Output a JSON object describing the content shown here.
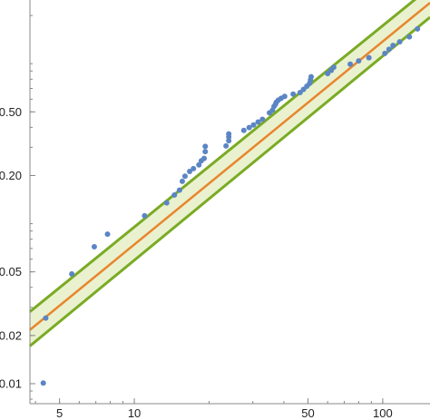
{
  "chart_data": {
    "type": "scatter",
    "title": "",
    "xlabel": "",
    "ylabel": "",
    "x_scale": "log",
    "y_scale": "log",
    "xlim": [
      3.8,
      155
    ],
    "ylim": [
      0.0075,
      2.5
    ],
    "grid": false,
    "x_ticks": [
      {
        "value": 5,
        "label": "5"
      },
      {
        "value": 10,
        "label": "10"
      },
      {
        "value": 50,
        "label": "50"
      },
      {
        "value": 100,
        "label": "100"
      }
    ],
    "y_ticks": [
      {
        "value": 0.01,
        "label": "0.01"
      },
      {
        "value": 0.02,
        "label": "0.02"
      },
      {
        "value": 0.05,
        "label": "0.05"
      },
      {
        "value": 0.2,
        "label": "0.20"
      },
      {
        "value": 0.5,
        "label": "0.50"
      }
    ],
    "points": [
      {
        "x": 4.3,
        "y": 0.0101
      },
      {
        "x": 4.4,
        "y": 0.0257
      },
      {
        "x": 5.6,
        "y": 0.0485
      },
      {
        "x": 6.9,
        "y": 0.0718
      },
      {
        "x": 7.8,
        "y": 0.086
      },
      {
        "x": 11.0,
        "y": 0.112
      },
      {
        "x": 13.5,
        "y": 0.135
      },
      {
        "x": 14.5,
        "y": 0.151
      },
      {
        "x": 15.2,
        "y": 0.162
      },
      {
        "x": 15.6,
        "y": 0.184
      },
      {
        "x": 16.0,
        "y": 0.198
      },
      {
        "x": 16.7,
        "y": 0.212
      },
      {
        "x": 17.3,
        "y": 0.221
      },
      {
        "x": 18.2,
        "y": 0.233
      },
      {
        "x": 18.6,
        "y": 0.247
      },
      {
        "x": 19.1,
        "y": 0.256
      },
      {
        "x": 19.3,
        "y": 0.282
      },
      {
        "x": 19.3,
        "y": 0.304
      },
      {
        "x": 23.4,
        "y": 0.306
      },
      {
        "x": 24.0,
        "y": 0.33
      },
      {
        "x": 24.0,
        "y": 0.348
      },
      {
        "x": 24.0,
        "y": 0.364
      },
      {
        "x": 27.6,
        "y": 0.383
      },
      {
        "x": 29.0,
        "y": 0.399
      },
      {
        "x": 30.2,
        "y": 0.414
      },
      {
        "x": 31.5,
        "y": 0.432
      },
      {
        "x": 32.8,
        "y": 0.449
      },
      {
        "x": 35.0,
        "y": 0.493
      },
      {
        "x": 36.0,
        "y": 0.512
      },
      {
        "x": 36.5,
        "y": 0.54
      },
      {
        "x": 37.0,
        "y": 0.557
      },
      {
        "x": 37.3,
        "y": 0.575
      },
      {
        "x": 38.0,
        "y": 0.592
      },
      {
        "x": 39.0,
        "y": 0.607
      },
      {
        "x": 40.3,
        "y": 0.625
      },
      {
        "x": 43.6,
        "y": 0.645
      },
      {
        "x": 46.5,
        "y": 0.66
      },
      {
        "x": 48.0,
        "y": 0.691
      },
      {
        "x": 49.5,
        "y": 0.723
      },
      {
        "x": 50.8,
        "y": 0.755
      },
      {
        "x": 51.2,
        "y": 0.791
      },
      {
        "x": 51.5,
        "y": 0.828
      },
      {
        "x": 60.0,
        "y": 0.867
      },
      {
        "x": 62.0,
        "y": 0.908
      },
      {
        "x": 63.5,
        "y": 0.95
      },
      {
        "x": 74.0,
        "y": 0.992
      },
      {
        "x": 80.0,
        "y": 1.04
      },
      {
        "x": 88.0,
        "y": 1.09
      },
      {
        "x": 102.0,
        "y": 1.16
      },
      {
        "x": 106.0,
        "y": 1.23
      },
      {
        "x": 110.0,
        "y": 1.3
      },
      {
        "x": 117.0,
        "y": 1.37
      },
      {
        "x": 128.0,
        "y": 1.47
      },
      {
        "x": 138.0,
        "y": 1.65
      }
    ],
    "fit": {
      "name": "",
      "x": [
        3.8,
        155
      ],
      "y": [
        0.0217,
        2.4
      ]
    },
    "band_upper": {
      "x": [
        3.8,
        155
      ],
      "y": [
        0.0282,
        3.0
      ]
    },
    "band_lower": {
      "x": [
        3.8,
        155
      ],
      "y": [
        0.0172,
        1.95
      ]
    },
    "colors": {
      "points": "#5b85c4",
      "fit": "#e8862e",
      "band_edge": "#7aab24",
      "band_fill": "#eaf1cf",
      "axis": "#888888",
      "tick_label": "#222222"
    }
  }
}
